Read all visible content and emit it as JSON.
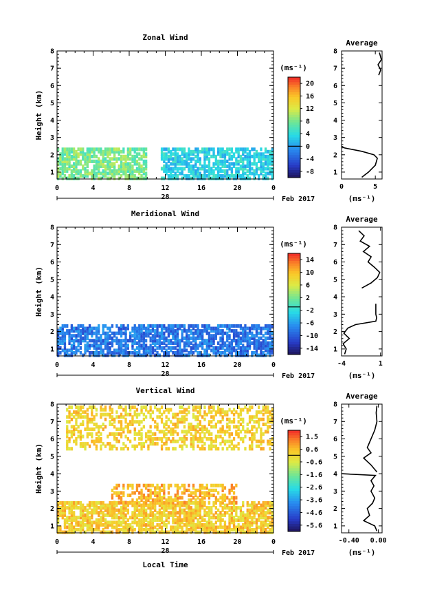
{
  "figure": {
    "date_label": "Feb 2017",
    "day_label": "28",
    "time_xlabel": "Local Time",
    "height_ylabel": "Height (km)",
    "unit_label": "(ms⁻¹)",
    "average_title": "Average",
    "time_ticks": [
      "0",
      "4",
      "8",
      "12",
      "16",
      "20",
      "0"
    ],
    "height_ticks": [
      "1",
      "2",
      "3",
      "4",
      "5",
      "6",
      "7",
      "8"
    ]
  },
  "chart_data": [
    {
      "id": "zonal",
      "type": "heatmap",
      "title": "Zonal Wind",
      "x_range_hours": [
        0,
        24
      ],
      "y_range_km": [
        0.6,
        8
      ],
      "colorbar_ticks": [
        "20",
        "16",
        "12",
        "8",
        "4",
        "0",
        "-4",
        "-8"
      ],
      "colorbar_range": [
        -10,
        22
      ],
      "approximate_data_coverage": [
        {
          "hours": [
            0,
            10
          ],
          "km": [
            0.6,
            2.3
          ],
          "typical_value_ms": 8
        },
        {
          "hours": [
            11.5,
            24
          ],
          "km": [
            0.6,
            2.4
          ],
          "typical_value_ms": 3
        }
      ],
      "average_profile": {
        "xlabel": "(ms⁻¹)",
        "x_ticks": [
          "0",
          "5"
        ],
        "x_range": [
          0,
          6
        ],
        "points": [
          {
            "km": 0.7,
            "ms": 3
          },
          {
            "km": 1.0,
            "ms": 4
          },
          {
            "km": 1.4,
            "ms": 5
          },
          {
            "km": 1.8,
            "ms": 5.3
          },
          {
            "km": 2.0,
            "ms": 4.8
          },
          {
            "km": 2.2,
            "ms": 3
          },
          {
            "km": 2.4,
            "ms": 0.4
          },
          {
            "km": 2.5,
            "ms": 0
          }
        ],
        "upper_points": [
          {
            "km": 6.6,
            "ms": 5.5
          },
          {
            "km": 6.9,
            "ms": 5.8
          },
          {
            "km": 7.2,
            "ms": 5.4
          },
          {
            "km": 7.5,
            "ms": 5.9
          },
          {
            "km": 7.9,
            "ms": 5.6
          }
        ]
      }
    },
    {
      "id": "meridional",
      "type": "heatmap",
      "title": "Meridional Wind",
      "x_range_hours": [
        0,
        24
      ],
      "y_range_km": [
        0.6,
        8
      ],
      "colorbar_ticks": [
        "14",
        "10",
        "6",
        "2",
        "-2",
        "-6",
        "-10",
        "-14"
      ],
      "colorbar_range": [
        -16,
        18
      ],
      "approximate_data_coverage": [
        {
          "hours": [
            0,
            24
          ],
          "km": [
            0.6,
            2.4
          ],
          "typical_value_ms": -8
        }
      ],
      "average_profile": {
        "xlabel": "(ms⁻¹)",
        "x_ticks": [
          "-4",
          "1"
        ],
        "x_range": [
          -4,
          1.2
        ],
        "points": [
          {
            "km": 0.7,
            "ms": -3.6
          },
          {
            "km": 1.0,
            "ms": -3.4
          },
          {
            "km": 1.3,
            "ms": -3.8
          },
          {
            "km": 1.6,
            "ms": -3.0
          },
          {
            "km": 1.9,
            "ms": -3.7
          },
          {
            "km": 2.2,
            "ms": -3.2
          },
          {
            "km": 2.4,
            "ms": -2.2
          },
          {
            "km": 2.6,
            "ms": 0.4
          },
          {
            "km": 2.8,
            "ms": 0.5
          },
          {
            "km": 3.0,
            "ms": 0.4
          },
          {
            "km": 3.3,
            "ms": 0.4
          },
          {
            "km": 3.6,
            "ms": 0.4
          }
        ],
        "upper_points": [
          {
            "km": 4.5,
            "ms": -1.4
          },
          {
            "km": 4.8,
            "ms": -0.2
          },
          {
            "km": 5.1,
            "ms": 0.6
          },
          {
            "km": 5.4,
            "ms": 0.9
          },
          {
            "km": 5.7,
            "ms": 0.2
          },
          {
            "km": 6.0,
            "ms": -0.6
          },
          {
            "km": 6.3,
            "ms": -0.2
          },
          {
            "km": 6.6,
            "ms": -1.2
          },
          {
            "km": 6.9,
            "ms": -0.4
          },
          {
            "km": 7.2,
            "ms": -1.6
          },
          {
            "km": 7.5,
            "ms": -1.1
          },
          {
            "km": 7.8,
            "ms": -1.8
          }
        ]
      }
    },
    {
      "id": "vertical",
      "type": "heatmap",
      "title": "Vertical Wind",
      "x_range_hours": [
        0,
        24
      ],
      "y_range_km": [
        0.6,
        8
      ],
      "colorbar_ticks": [
        "1.5",
        "0.6",
        "-0.6",
        "-1.6",
        "-2.6",
        "-3.6",
        "-4.6",
        "-5.6"
      ],
      "colorbar_range": [
        -6.1,
        2.0
      ],
      "approximate_data_coverage": [
        {
          "hours": [
            0,
            24
          ],
          "km": [
            0.6,
            2.3
          ],
          "typical_value_ms": 0.2
        },
        {
          "hours": [
            6,
            20
          ],
          "km": [
            2.3,
            3.3
          ],
          "typical_value_ms": 0.6
        },
        {
          "hours": [
            1,
            24
          ],
          "km": [
            5.4,
            7.8
          ],
          "typical_value_ms": 0.1
        }
      ],
      "average_profile": {
        "xlabel": "(ms⁻¹)",
        "x_ticks": [
          "-0.40",
          "0.00"
        ],
        "x_range": [
          -0.5,
          0.05
        ],
        "points": [
          {
            "km": 0.7,
            "ms": -0.02
          },
          {
            "km": 1.0,
            "ms": -0.05
          },
          {
            "km": 1.3,
            "ms": -0.2
          },
          {
            "km": 1.6,
            "ms": -0.12
          },
          {
            "km": 2.0,
            "ms": -0.15
          },
          {
            "km": 2.3,
            "ms": -0.08
          },
          {
            "km": 2.6,
            "ms": -0.05
          },
          {
            "km": 3.0,
            "ms": -0.1
          },
          {
            "km": 3.3,
            "ms": -0.06
          },
          {
            "km": 3.6,
            "ms": -0.1
          },
          {
            "km": 3.9,
            "ms": -0.04
          },
          {
            "km": 4.0,
            "ms": -0.5
          }
        ],
        "upper_points": [
          {
            "km": 4.1,
            "ms": -0.02
          },
          {
            "km": 4.5,
            "ms": -0.1
          },
          {
            "km": 4.9,
            "ms": -0.2
          },
          {
            "km": 5.2,
            "ms": -0.1
          },
          {
            "km": 5.5,
            "ms": -0.15
          },
          {
            "km": 6.0,
            "ms": -0.1
          },
          {
            "km": 6.5,
            "ms": -0.05
          },
          {
            "km": 7.0,
            "ms": -0.02
          },
          {
            "km": 7.5,
            "ms": -0.03
          },
          {
            "km": 7.9,
            "ms": -0.02
          }
        ]
      }
    }
  ]
}
